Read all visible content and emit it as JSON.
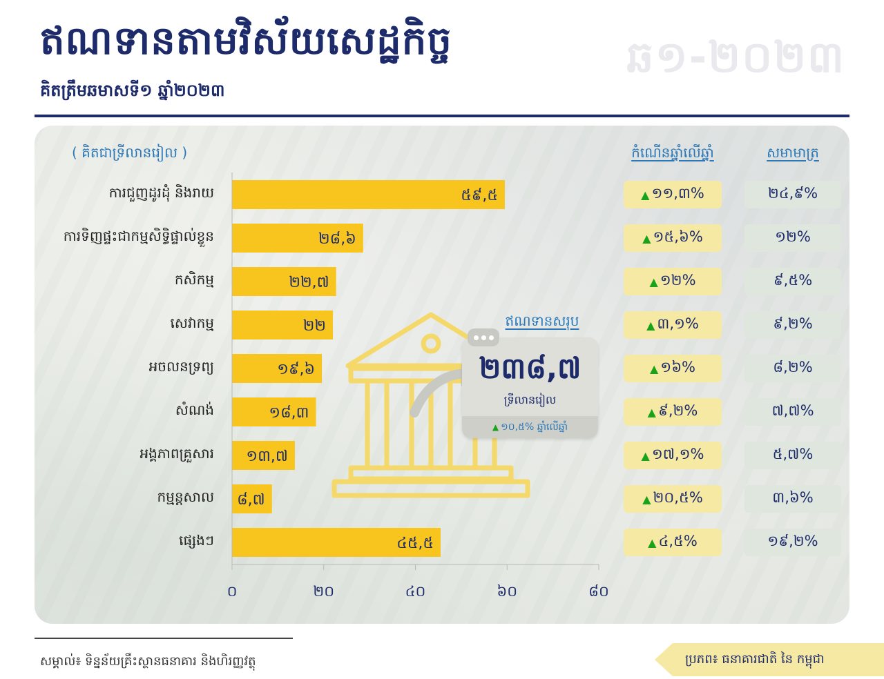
{
  "header": {
    "title": "ឥណទានតាមវិស័យសេដ្ឋកិច្ច",
    "subtitle": "គិតត្រឹមឆមាសទី១ ឆ្នាំ២០២៣",
    "period": "ឆ១-២០២៣"
  },
  "table": {
    "unit_label": "( គិតជាទ្រីលានរៀល )",
    "growth_header": "កំណើនឆ្នាំលើឆ្នាំ",
    "share_header": "សមាមាត្រ",
    "rows": [
      {
        "category": "ការជួញដូរដុំ និងរាយ",
        "value_label": "៥៩,៥",
        "growth": "១១,៣%",
        "share": "២៤,៩%"
      },
      {
        "category": "ការទិញផ្ទះជាកម្មសិទ្ធិផ្ទាល់ខ្លួន",
        "value_label": "២៨,៦",
        "growth": "១៥,៦%",
        "share": "១២%"
      },
      {
        "category": "កសិកម្ម",
        "value_label": "២២,៧",
        "growth": "១២%",
        "share": "៩,៥%"
      },
      {
        "category": "សេវាកម្ម",
        "value_label": "២២",
        "growth": "៣,១%",
        "share": "៩,២%"
      },
      {
        "category": "អចលនទ្រព្យ",
        "value_label": "១៩,៦",
        "growth": "១៦%",
        "share": "៨,២%"
      },
      {
        "category": "សំណង់",
        "value_label": "១៨,៣",
        "growth": "៩,២%",
        "share": "៧,៧%"
      },
      {
        "category": "អង្គភាពគ្រួសារ",
        "value_label": "១៣,៧",
        "growth": "១៧,១%",
        "share": "៥,៧%"
      },
      {
        "category": "កម្មន្តសាល",
        "value_label": "៨,៧",
        "growth": "២០,៥%",
        "share": "៣,៦%"
      },
      {
        "category": "ផ្សេងៗ",
        "value_label": "៤៥,៥",
        "growth": "៤,៥%",
        "share": "១៩,២%"
      }
    ]
  },
  "total": {
    "title": "ឥណទានសរុប",
    "value": "២៣៨,៧",
    "unit": "ទ្រីលានរៀល",
    "growth": "១០,៥% ឆ្នាំលើឆ្នាំ"
  },
  "footer": {
    "note": "សម្គាល់៖ ទិន្នន័យគ្រឹះស្ថានធនាគារ និងហិរញ្ញវត្ថុ",
    "source": "ប្រភព៖ ធនាគារជាតិ នៃ កម្ពុជា"
  },
  "colors": {
    "bar": "#f7c51e",
    "title": "#1d2b6b",
    "accent": "#2a78b8",
    "growth_pill": "#f6e9a3",
    "share_pill": "#dfe6dd",
    "up_arrow": "#1aa31a"
  },
  "chart_data": {
    "type": "bar",
    "orientation": "horizontal",
    "categories": [
      "ការជួញដូរដុំ និងរាយ",
      "ការទិញផ្ទះជាកម្មសិទ្ធិផ្ទាល់ខ្លួន",
      "កសិកម្ម",
      "សេវាកម្ម",
      "អចលនទ្រព្យ",
      "សំណង់",
      "អង្គភាពគ្រួសារ",
      "កម្មន្តសាល",
      "ផ្សេងៗ"
    ],
    "values": [
      59.5,
      28.6,
      22.7,
      22,
      19.6,
      18.3,
      13.7,
      8.7,
      45.5
    ],
    "title": "ឥណទានតាមវិស័យសេដ្ឋកិច្ច",
    "xlabel": "",
    "ylabel": "",
    "xlim": [
      0,
      80
    ],
    "ticks": [
      0,
      20,
      40,
      60,
      80
    ],
    "tick_labels": [
      "០",
      "២០",
      "៤០",
      "៦០",
      "៨០"
    ],
    "grid": false,
    "legend": "none"
  }
}
